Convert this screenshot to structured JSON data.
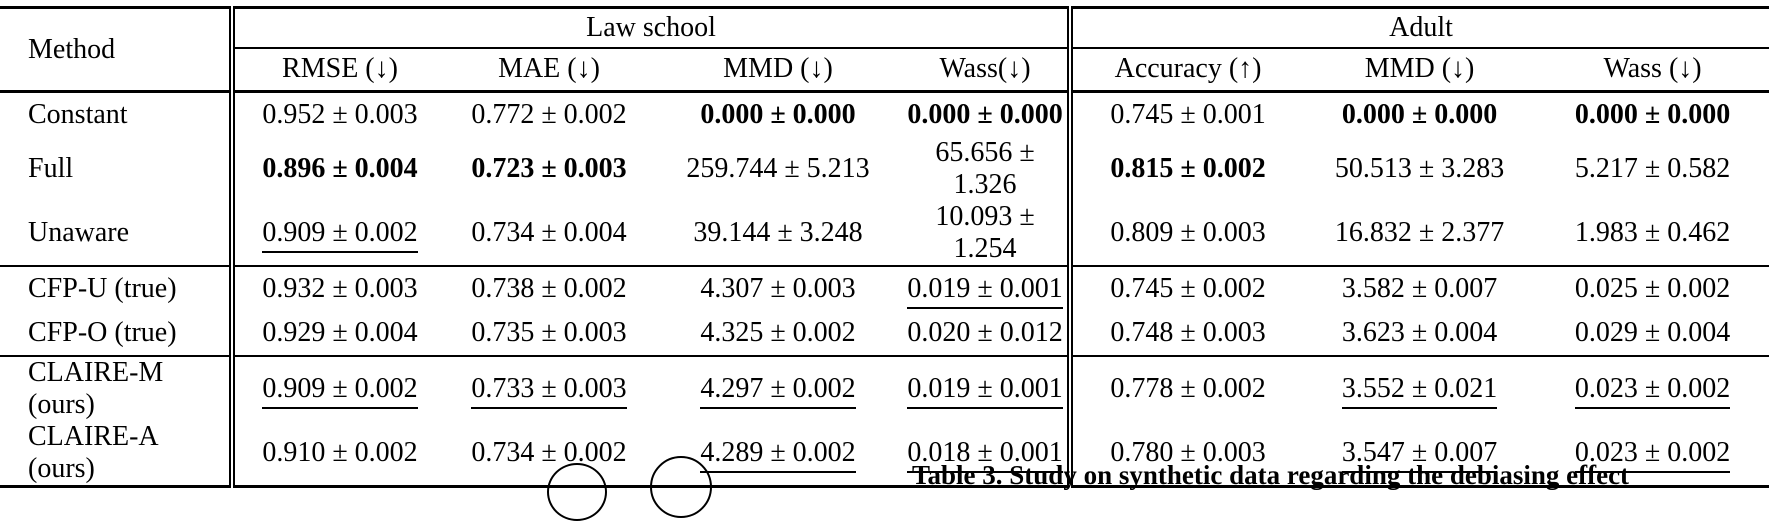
{
  "table": {
    "corner_header": "Method",
    "groups": [
      {
        "label": "Law school",
        "columns": [
          "RMSE (↓)",
          "MAE (↓)",
          "MMD (↓)",
          "Wass(↓)"
        ]
      },
      {
        "label": "Adult",
        "columns": [
          "Accuracy (↑)",
          "MMD (↓)",
          "Wass (↓)"
        ]
      }
    ],
    "sections": [
      {
        "name": "baselines",
        "rows": [
          {
            "method": "Constant",
            "values": [
              {
                "text": "0.952 ± 0.003",
                "bold": false,
                "underline": false
              },
              {
                "text": "0.772 ± 0.002",
                "bold": false,
                "underline": false
              },
              {
                "text": "0.000 ± 0.000",
                "bold": true,
                "underline": false
              },
              {
                "text": "0.000 ± 0.000",
                "bold": true,
                "underline": false
              },
              {
                "text": "0.745 ± 0.001",
                "bold": false,
                "underline": false
              },
              {
                "text": "0.000 ± 0.000",
                "bold": true,
                "underline": false
              },
              {
                "text": "0.000 ± 0.000",
                "bold": true,
                "underline": false
              }
            ]
          },
          {
            "method": "Full",
            "values": [
              {
                "text": "0.896 ± 0.004",
                "bold": true,
                "underline": false
              },
              {
                "text": "0.723 ± 0.003",
                "bold": true,
                "underline": false
              },
              {
                "text": "259.744 ± 5.213",
                "bold": false,
                "underline": false
              },
              {
                "text": "65.656 ± 1.326",
                "bold": false,
                "underline": false
              },
              {
                "text": "0.815 ± 0.002",
                "bold": true,
                "underline": false
              },
              {
                "text": "50.513 ± 3.283",
                "bold": false,
                "underline": false
              },
              {
                "text": "5.217 ± 0.582",
                "bold": false,
                "underline": false
              }
            ]
          },
          {
            "method": "Unaware",
            "values": [
              {
                "text": "0.909 ± 0.002",
                "bold": false,
                "underline": true
              },
              {
                "text": "0.734 ± 0.004",
                "bold": false,
                "underline": false
              },
              {
                "text": "39.144 ± 3.248",
                "bold": false,
                "underline": false
              },
              {
                "text": "10.093 ± 1.254",
                "bold": false,
                "underline": false
              },
              {
                "text": "0.809 ± 0.003",
                "bold": false,
                "underline": false
              },
              {
                "text": "16.832 ± 2.377",
                "bold": false,
                "underline": false
              },
              {
                "text": "1.983 ± 0.462",
                "bold": false,
                "underline": false
              }
            ]
          }
        ]
      },
      {
        "name": "cfp",
        "rows": [
          {
            "method": "CFP-U (true)",
            "values": [
              {
                "text": "0.932 ± 0.003",
                "bold": false,
                "underline": false
              },
              {
                "text": "0.738 ± 0.002",
                "bold": false,
                "underline": false
              },
              {
                "text": "4.307 ± 0.003",
                "bold": false,
                "underline": false
              },
              {
                "text": "0.019 ± 0.001",
                "bold": false,
                "underline": true
              },
              {
                "text": "0.745 ± 0.002",
                "bold": false,
                "underline": false
              },
              {
                "text": "3.582 ± 0.007",
                "bold": false,
                "underline": false
              },
              {
                "text": "0.025 ± 0.002",
                "bold": false,
                "underline": false
              }
            ]
          },
          {
            "method": "CFP-O (true)",
            "values": [
              {
                "text": "0.929 ± 0.004",
                "bold": false,
                "underline": false
              },
              {
                "text": "0.735 ± 0.003",
                "bold": false,
                "underline": false
              },
              {
                "text": "4.325 ± 0.002",
                "bold": false,
                "underline": false
              },
              {
                "text": "0.020 ± 0.012",
                "bold": false,
                "underline": false
              },
              {
                "text": "0.748 ± 0.003",
                "bold": false,
                "underline": false
              },
              {
                "text": "3.623 ± 0.004",
                "bold": false,
                "underline": false
              },
              {
                "text": "0.029 ± 0.004",
                "bold": false,
                "underline": false
              }
            ]
          }
        ]
      },
      {
        "name": "claire",
        "rows": [
          {
            "method": "CLAIRE-M (ours)",
            "values": [
              {
                "text": "0.909 ± 0.002",
                "bold": false,
                "underline": true
              },
              {
                "text": "0.733 ± 0.003",
                "bold": false,
                "underline": true
              },
              {
                "text": "4.297 ± 0.002",
                "bold": false,
                "underline": true
              },
              {
                "text": "0.019 ± 0.001",
                "bold": false,
                "underline": true
              },
              {
                "text": "0.778 ± 0.002",
                "bold": false,
                "underline": false
              },
              {
                "text": "3.552 ± 0.021",
                "bold": false,
                "underline": true
              },
              {
                "text": "0.023 ± 0.002",
                "bold": false,
                "underline": true
              }
            ]
          },
          {
            "method": "CLAIRE-A (ours)",
            "values": [
              {
                "text": "0.910 ± 0.002",
                "bold": false,
                "underline": false
              },
              {
                "text": "0.734 ± 0.002",
                "bold": false,
                "underline": false
              },
              {
                "text": "4.289 ± 0.002",
                "bold": false,
                "underline": true
              },
              {
                "text": "0.018 ± 0.001",
                "bold": false,
                "underline": true
              },
              {
                "text": "0.780 ± 0.003",
                "bold": false,
                "underline": false
              },
              {
                "text": "3.547 ± 0.007",
                "bold": false,
                "underline": true
              },
              {
                "text": "0.023 ± 0.002",
                "bold": false,
                "underline": true
              }
            ]
          }
        ]
      }
    ]
  },
  "caption_fragment": {
    "text": "Table 3. Study on synthetic data regarding the debiasing effect"
  },
  "colors": {
    "text": "#000000",
    "background": "#ffffff",
    "rule": "#000000"
  }
}
